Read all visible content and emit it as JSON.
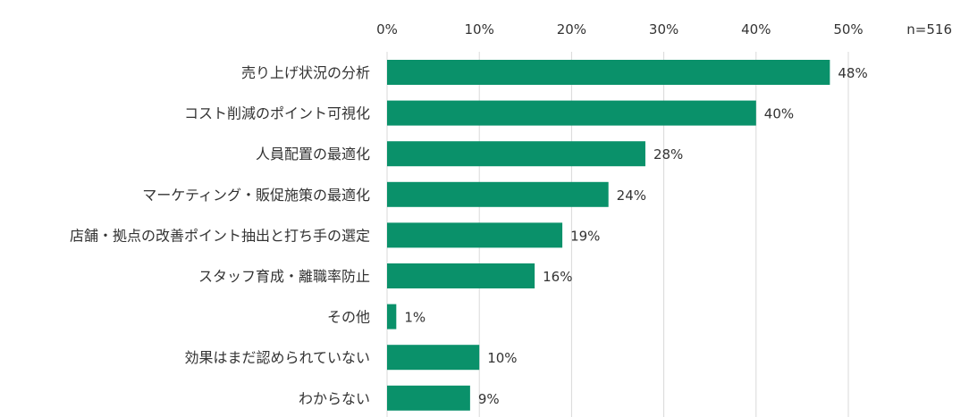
{
  "chart_data": {
    "type": "bar",
    "orientation": "horizontal",
    "sample_size_label": "n=516",
    "categories": [
      "売り上げ状況の分析",
      "コスト削減のポイント可視化",
      "人員配置の最適化",
      "マーケティング・販促施策の最適化",
      "店舗・拠点の改善ポイント抽出と打ち手の選定",
      "スタッフ育成・離職率防止",
      "その他",
      "効果はまだ認められていない",
      "わからない"
    ],
    "values": [
      48,
      40,
      28,
      24,
      19,
      16,
      1,
      10,
      9
    ],
    "value_labels": [
      "48%",
      "40%",
      "28%",
      "24%",
      "19%",
      "16%",
      "1%",
      "10%",
      "9%"
    ],
    "x_ticks": [
      0,
      10,
      20,
      30,
      40,
      50
    ],
    "x_tick_labels": [
      "0%",
      "10%",
      "20%",
      "30%",
      "40%",
      "50%"
    ],
    "xlim": [
      0,
      50
    ],
    "grid": true,
    "axis_position": "top",
    "bar_color": "#0a916a"
  }
}
